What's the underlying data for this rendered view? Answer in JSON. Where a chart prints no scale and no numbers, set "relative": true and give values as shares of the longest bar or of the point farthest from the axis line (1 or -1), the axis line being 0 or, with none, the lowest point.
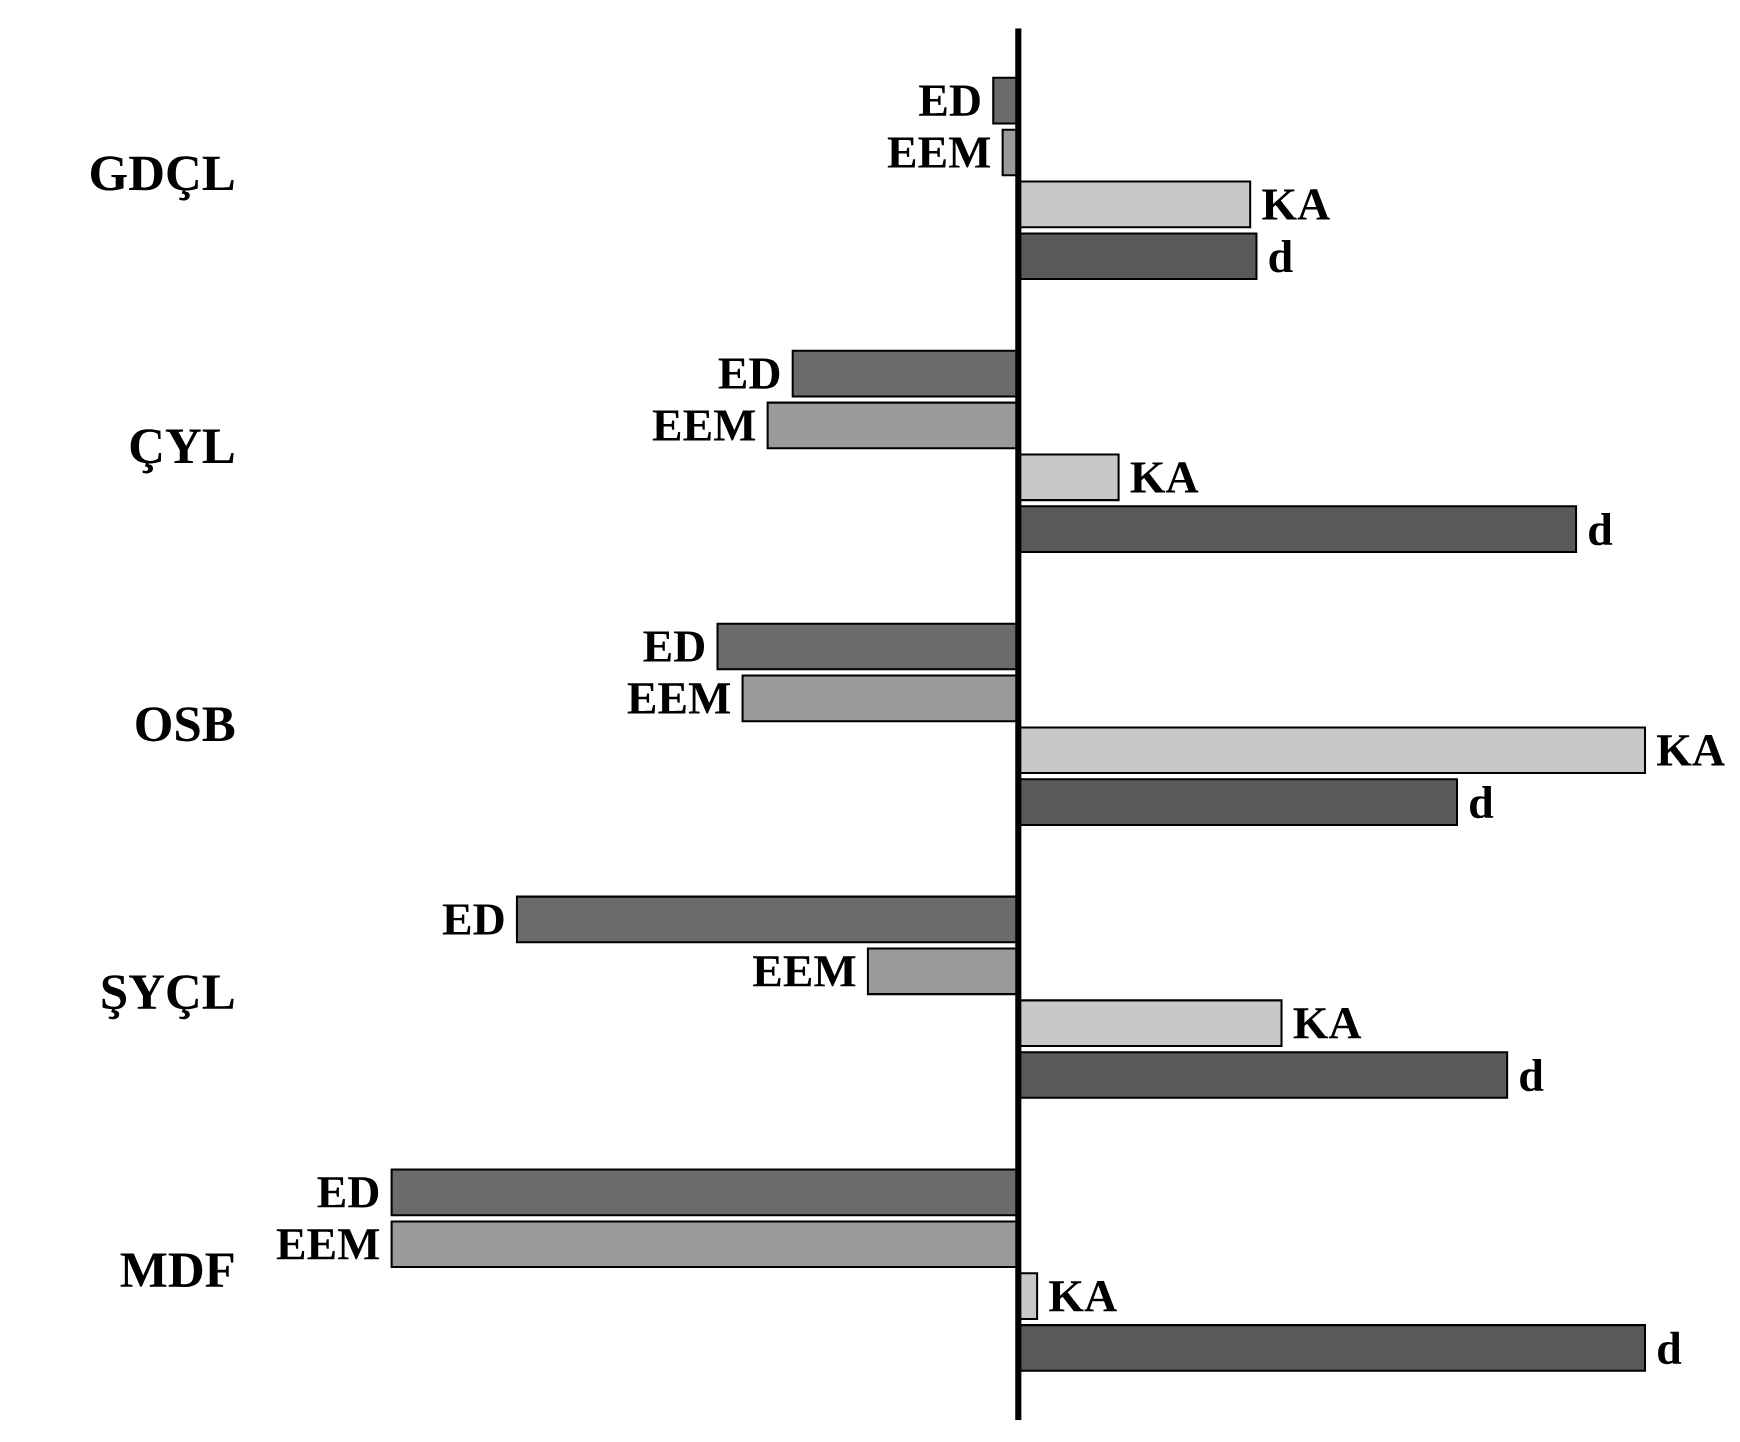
{
  "chart_data": {
    "type": "bar",
    "orientation": "horizontal",
    "relative": true,
    "categories": [
      "GDÇL",
      "ÇYL",
      "OSB",
      "ŞYÇL",
      "MDF"
    ],
    "series": [
      {
        "name": "ED",
        "color": "#6b6b6b",
        "values": [
          -0.04,
          -0.36,
          -0.48,
          -0.8,
          -1.0
        ]
      },
      {
        "name": "EEM",
        "color": "#9a9a9a",
        "values": [
          -0.025,
          -0.4,
          -0.44,
          -0.24,
          -1.0
        ]
      },
      {
        "name": "KA",
        "color": "#c8c8c8",
        "values": [
          0.37,
          0.16,
          1.0,
          0.42,
          0.03
        ]
      },
      {
        "name": "d",
        "color": "#5a5a5a",
        "values": [
          0.38,
          0.89,
          0.7,
          0.78,
          1.0
        ]
      }
    ]
  }
}
